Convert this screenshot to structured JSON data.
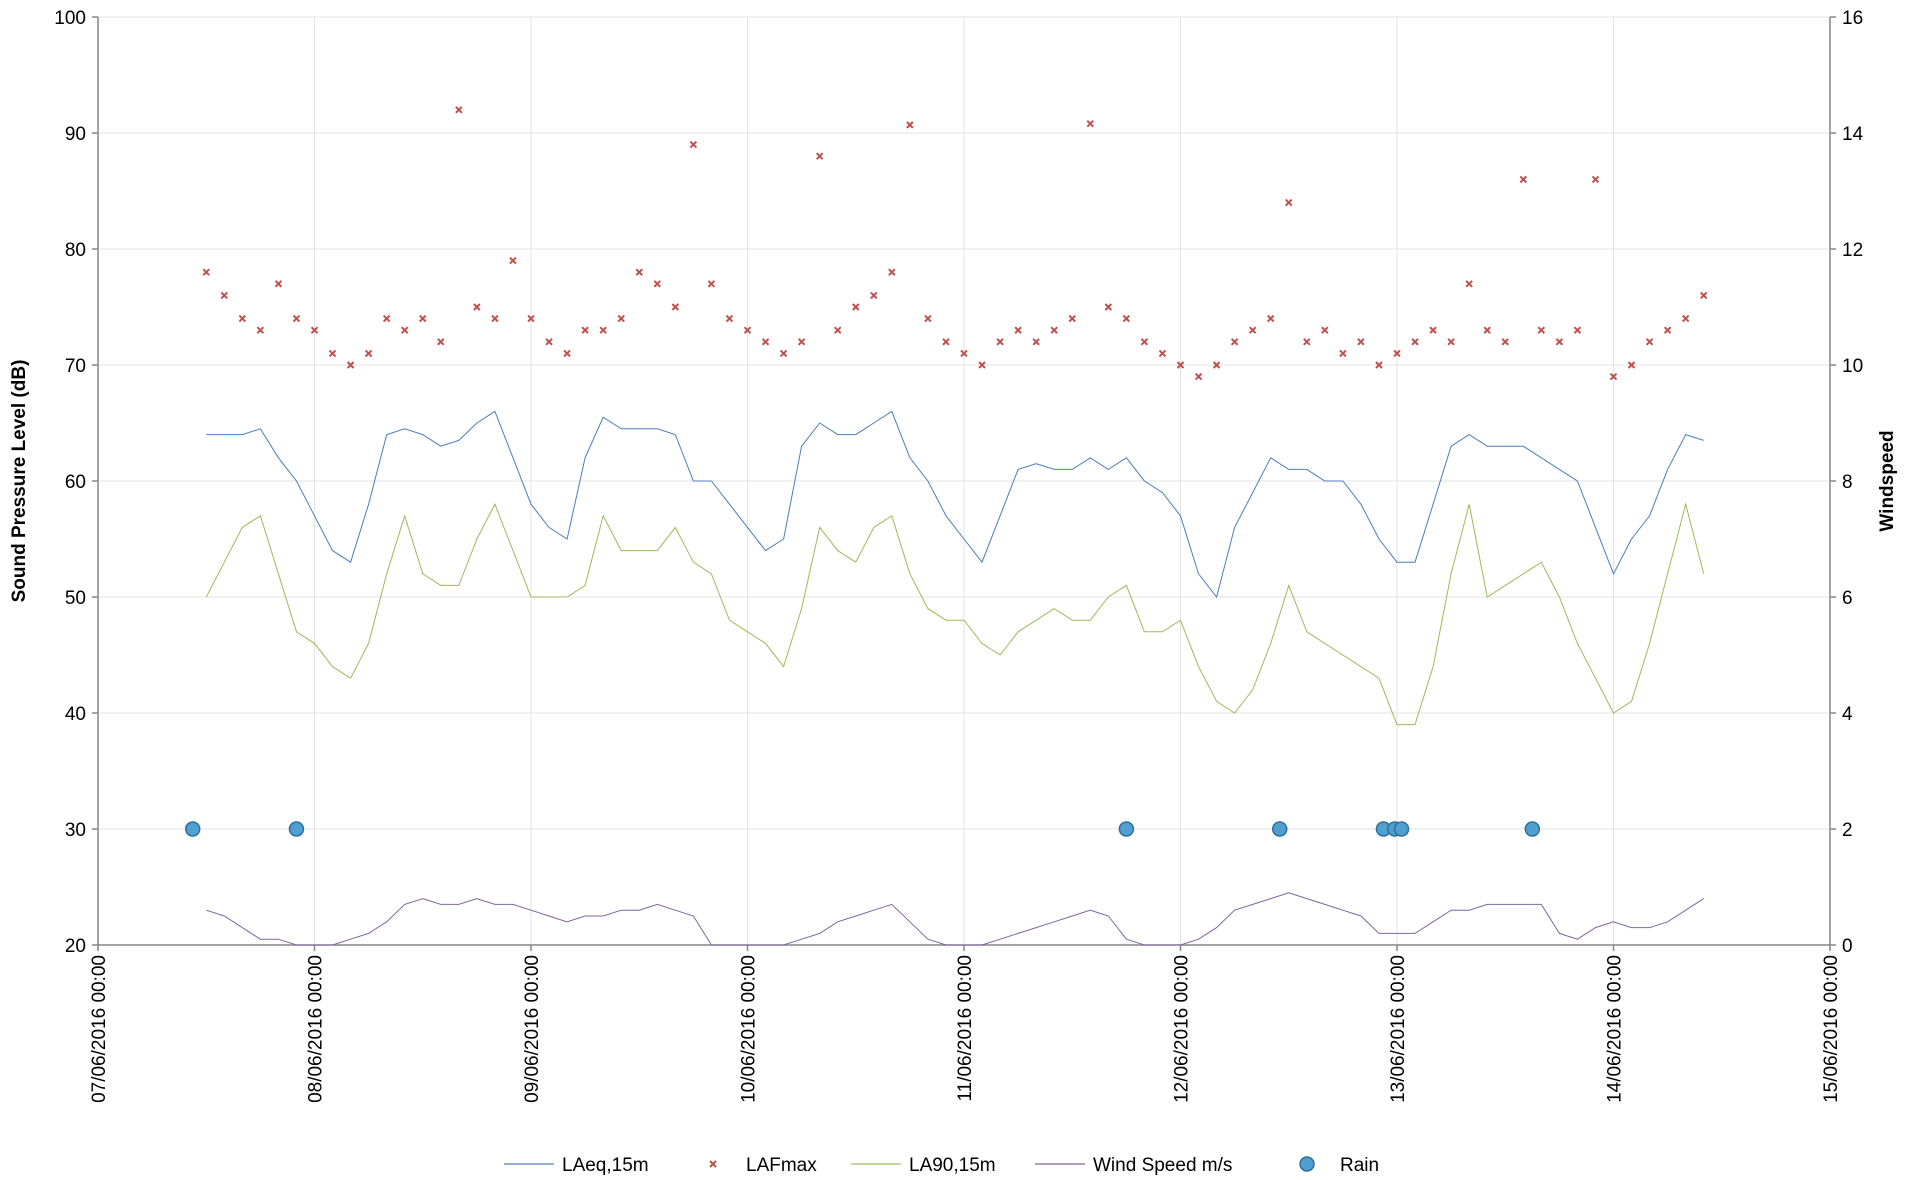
{
  "chart_data": {
    "type": "line",
    "y_label": "Sound Pressure Level (dB)",
    "y2_label": "Windspeed",
    "ylim": [
      20,
      100
    ],
    "yticks": [
      20,
      30,
      40,
      50,
      60,
      70,
      80,
      90,
      100
    ],
    "y2lim": [
      0,
      16
    ],
    "y2ticks": [
      0,
      2,
      4,
      6,
      8,
      10,
      12,
      14,
      16
    ],
    "xlim": [
      "2016-06-07 00:00",
      "2016-06-15 00:00"
    ],
    "xticks": [
      {
        "value": "2016-06-07 00:00",
        "label": "07/06/2016 00:00"
      },
      {
        "value": "2016-06-08 00:00",
        "label": "08/06/2016 00:00"
      },
      {
        "value": "2016-06-09 00:00",
        "label": "09/06/2016 00:00"
      },
      {
        "value": "2016-06-10 00:00",
        "label": "10/06/2016 00:00"
      },
      {
        "value": "2016-06-11 00:00",
        "label": "11/06/2016 00:00"
      },
      {
        "value": "2016-06-12 00:00",
        "label": "12/06/2016 00:00"
      },
      {
        "value": "2016-06-13 00:00",
        "label": "13/06/2016 00:00"
      },
      {
        "value": "2016-06-14 00:00",
        "label": "14/06/2016 00:00"
      },
      {
        "value": "2016-06-15 00:00",
        "label": "15/06/2016 00:00"
      }
    ],
    "grid": true,
    "legend": "bottom",
    "x": [
      "2016-06-07 12:00",
      "2016-06-07 14:00",
      "2016-06-07 16:00",
      "2016-06-07 18:00",
      "2016-06-07 20:00",
      "2016-06-07 22:00",
      "2016-06-08 00:00",
      "2016-06-08 02:00",
      "2016-06-08 04:00",
      "2016-06-08 06:00",
      "2016-06-08 08:00",
      "2016-06-08 10:00",
      "2016-06-08 12:00",
      "2016-06-08 14:00",
      "2016-06-08 16:00",
      "2016-06-08 18:00",
      "2016-06-08 20:00",
      "2016-06-08 22:00",
      "2016-06-09 00:00",
      "2016-06-09 02:00",
      "2016-06-09 04:00",
      "2016-06-09 06:00",
      "2016-06-09 08:00",
      "2016-06-09 10:00",
      "2016-06-09 12:00",
      "2016-06-09 14:00",
      "2016-06-09 16:00",
      "2016-06-09 18:00",
      "2016-06-09 20:00",
      "2016-06-09 22:00",
      "2016-06-10 00:00",
      "2016-06-10 02:00",
      "2016-06-10 04:00",
      "2016-06-10 06:00",
      "2016-06-10 08:00",
      "2016-06-10 10:00",
      "2016-06-10 12:00",
      "2016-06-10 14:00",
      "2016-06-10 16:00",
      "2016-06-10 18:00",
      "2016-06-10 20:00",
      "2016-06-10 22:00",
      "2016-06-11 00:00",
      "2016-06-11 02:00",
      "2016-06-11 04:00",
      "2016-06-11 06:00",
      "2016-06-11 08:00",
      "2016-06-11 10:00",
      "2016-06-11 12:00",
      "2016-06-11 14:00",
      "2016-06-11 16:00",
      "2016-06-11 18:00",
      "2016-06-11 20:00",
      "2016-06-11 22:00",
      "2016-06-12 00:00",
      "2016-06-12 02:00",
      "2016-06-12 04:00",
      "2016-06-12 06:00",
      "2016-06-12 08:00",
      "2016-06-12 10:00",
      "2016-06-12 12:00",
      "2016-06-12 14:00",
      "2016-06-12 16:00",
      "2016-06-12 18:00",
      "2016-06-12 20:00",
      "2016-06-12 22:00",
      "2016-06-13 00:00",
      "2016-06-13 02:00",
      "2016-06-13 04:00",
      "2016-06-13 06:00",
      "2016-06-13 08:00",
      "2016-06-13 10:00",
      "2016-06-13 12:00",
      "2016-06-13 14:00",
      "2016-06-13 16:00",
      "2016-06-13 18:00",
      "2016-06-13 20:00",
      "2016-06-13 22:00",
      "2016-06-14 00:00",
      "2016-06-14 02:00",
      "2016-06-14 04:00",
      "2016-06-14 06:00",
      "2016-06-14 08:00",
      "2016-06-14 10:00"
    ],
    "series": [
      {
        "name": "LAeq,15m",
        "type": "line",
        "color": "#4a7ebb",
        "values": [
          64,
          64,
          64,
          64.5,
          62,
          60,
          57,
          54,
          53,
          58,
          64,
          64.5,
          64,
          63,
          63.5,
          65,
          66,
          62,
          58,
          56,
          55,
          62,
          65.5,
          64.5,
          64.5,
          64.5,
          64,
          60,
          60,
          58,
          56,
          54,
          55,
          63,
          65,
          64,
          64,
          65,
          66,
          62,
          60,
          57,
          55,
          53,
          57,
          61,
          61.5,
          61,
          61,
          62,
          61,
          62,
          60,
          59,
          57,
          52,
          50,
          56,
          59,
          62,
          61,
          61,
          60,
          60,
          58,
          55,
          53,
          53,
          58,
          63,
          64,
          63,
          63,
          63,
          62,
          61,
          60,
          56,
          52,
          55,
          57,
          61,
          64,
          63.5
        ]
      },
      {
        "name": "LAFmax",
        "type": "scatter",
        "color": "#c0504d",
        "values": [
          78,
          76,
          74,
          73,
          77,
          74,
          73,
          71,
          70,
          71,
          74,
          73,
          74,
          72,
          92,
          75,
          74,
          79,
          74,
          72,
          71,
          73,
          73,
          74,
          78,
          77,
          75,
          89,
          77,
          74,
          73,
          72,
          71,
          72,
          88,
          73,
          75,
          76,
          78,
          90.7,
          74,
          72,
          71,
          70,
          72,
          73,
          72,
          73,
          74,
          90.8,
          75,
          74,
          72,
          71,
          70,
          69,
          70,
          72,
          73,
          74,
          84,
          72,
          73,
          71,
          72,
          70,
          71,
          72,
          73,
          72,
          77,
          73,
          72,
          86,
          73,
          72,
          73,
          86,
          69,
          70,
          72,
          73,
          74,
          76
        ]
      },
      {
        "name": "LA90,15m",
        "type": "line",
        "color": "#9bbb59",
        "values": [
          50,
          53,
          56,
          57,
          52,
          47,
          46,
          44,
          43,
          46,
          52,
          57,
          52,
          51,
          51,
          55,
          58,
          54,
          50,
          50,
          50,
          51,
          57,
          54,
          54,
          54,
          56,
          53,
          52,
          48,
          47,
          46,
          44,
          49,
          56,
          54,
          53,
          56,
          57,
          52,
          49,
          48,
          48,
          46,
          45,
          47,
          48,
          49,
          48,
          48,
          50,
          51,
          47,
          47,
          48,
          44,
          41,
          40,
          42,
          46,
          51,
          47,
          46,
          45,
          44,
          43,
          39,
          39,
          44,
          52,
          58,
          50,
          51,
          52,
          53,
          50,
          46,
          43,
          40,
          41,
          46,
          52,
          58,
          52
        ]
      },
      {
        "name": "Wind Speed m/s",
        "type": "line",
        "color": "#8064a2",
        "axis": "y2",
        "values": [
          0.6,
          0.5,
          0.3,
          0.1,
          0.1,
          0,
          0,
          0,
          0.1,
          0.2,
          0.4,
          0.7,
          0.8,
          0.7,
          0.7,
          0.8,
          0.7,
          0.7,
          0.6,
          0.5,
          0.4,
          0.5,
          0.5,
          0.6,
          0.6,
          0.7,
          0.6,
          0.5,
          0,
          0,
          0,
          0,
          0,
          0.1,
          0.2,
          0.4,
          0.5,
          0.6,
          0.7,
          0.4,
          0.1,
          0,
          0,
          0,
          0.1,
          0.2,
          0.3,
          0.4,
          0.5,
          0.6,
          0.5,
          0.1,
          0,
          0,
          0,
          0.1,
          0.3,
          0.6,
          0.7,
          0.8,
          0.9,
          0.8,
          0.7,
          0.6,
          0.5,
          0.2,
          0.2,
          0.2,
          0.4,
          0.6,
          0.6,
          0.7,
          0.7,
          0.7,
          0.7,
          0.2,
          0.1,
          0.3,
          0.4,
          0.3,
          0.3,
          0.4,
          0.6,
          0.8
        ]
      },
      {
        "name": "Rain",
        "type": "scatter",
        "marker": "circle",
        "color": "#4f9fcf",
        "x": [
          "2016-06-07 10:30",
          "2016-06-07 22:00",
          "2016-06-11 18:00",
          "2016-06-12 11:00",
          "2016-06-12 22:30",
          "2016-06-12 23:45",
          "2016-06-13 00:30",
          "2016-06-13 15:00"
        ],
        "values": [
          30,
          30,
          30,
          30,
          30,
          30,
          30,
          30
        ]
      }
    ]
  }
}
